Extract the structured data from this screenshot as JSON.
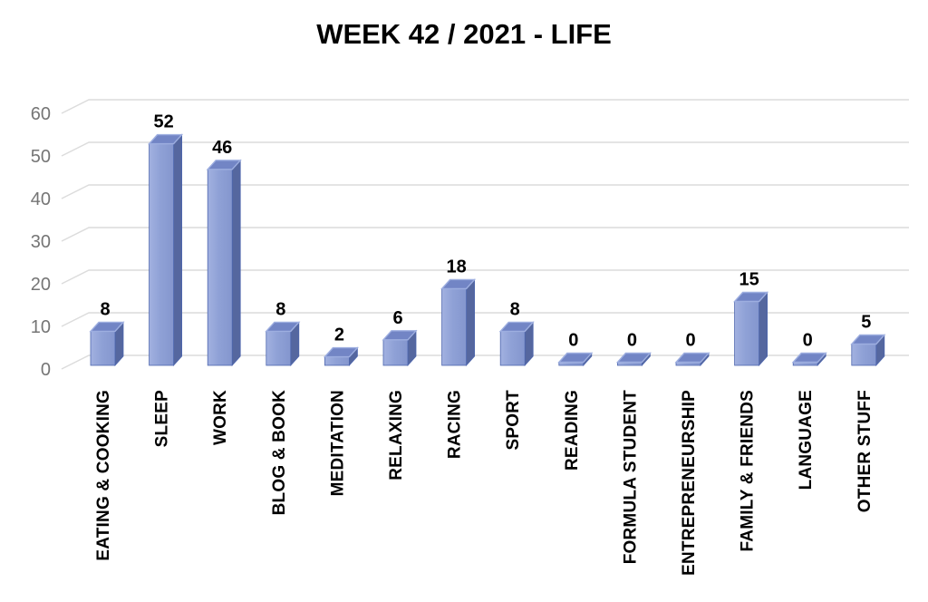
{
  "chart_data": {
    "type": "bar",
    "style": "3d-column",
    "title": "WEEK 42 / 2021 - LIFE",
    "categories": [
      "EATING & COOKING",
      "SLEEP",
      "WORK",
      "BLOG & BOOK",
      "MEDITATION",
      "RELAXING",
      "RACING",
      "SPORT",
      "READING",
      "FORMULA STUDENT",
      "ENTREPRENEURSHIP",
      "FAMILY & FRIENDS",
      "LANGUAGE",
      "OTHER STUFF"
    ],
    "values": [
      8,
      52,
      46,
      8,
      2,
      6,
      18,
      8,
      0,
      0,
      0,
      15,
      0,
      5
    ],
    "data_labels_shown": true,
    "xlabel": "",
    "ylabel": "",
    "ylim": [
      0,
      60
    ],
    "yticks": [
      0,
      10,
      20,
      30,
      40,
      50,
      60
    ],
    "grid": true,
    "legend": "none",
    "colors": {
      "bar_front_light": "#9DACDD",
      "bar_front": "#8A9CD3",
      "bar_side": "#55679F",
      "bar_top": "#7285C5",
      "bar_top_highlight": "#9DAEE0",
      "bar_outline": "#4D66AE",
      "gridline": "#DCDCDC",
      "axis_text": "#757575",
      "data_label": "#000000",
      "title": "#000000",
      "background": "#FFFFFF"
    }
  }
}
